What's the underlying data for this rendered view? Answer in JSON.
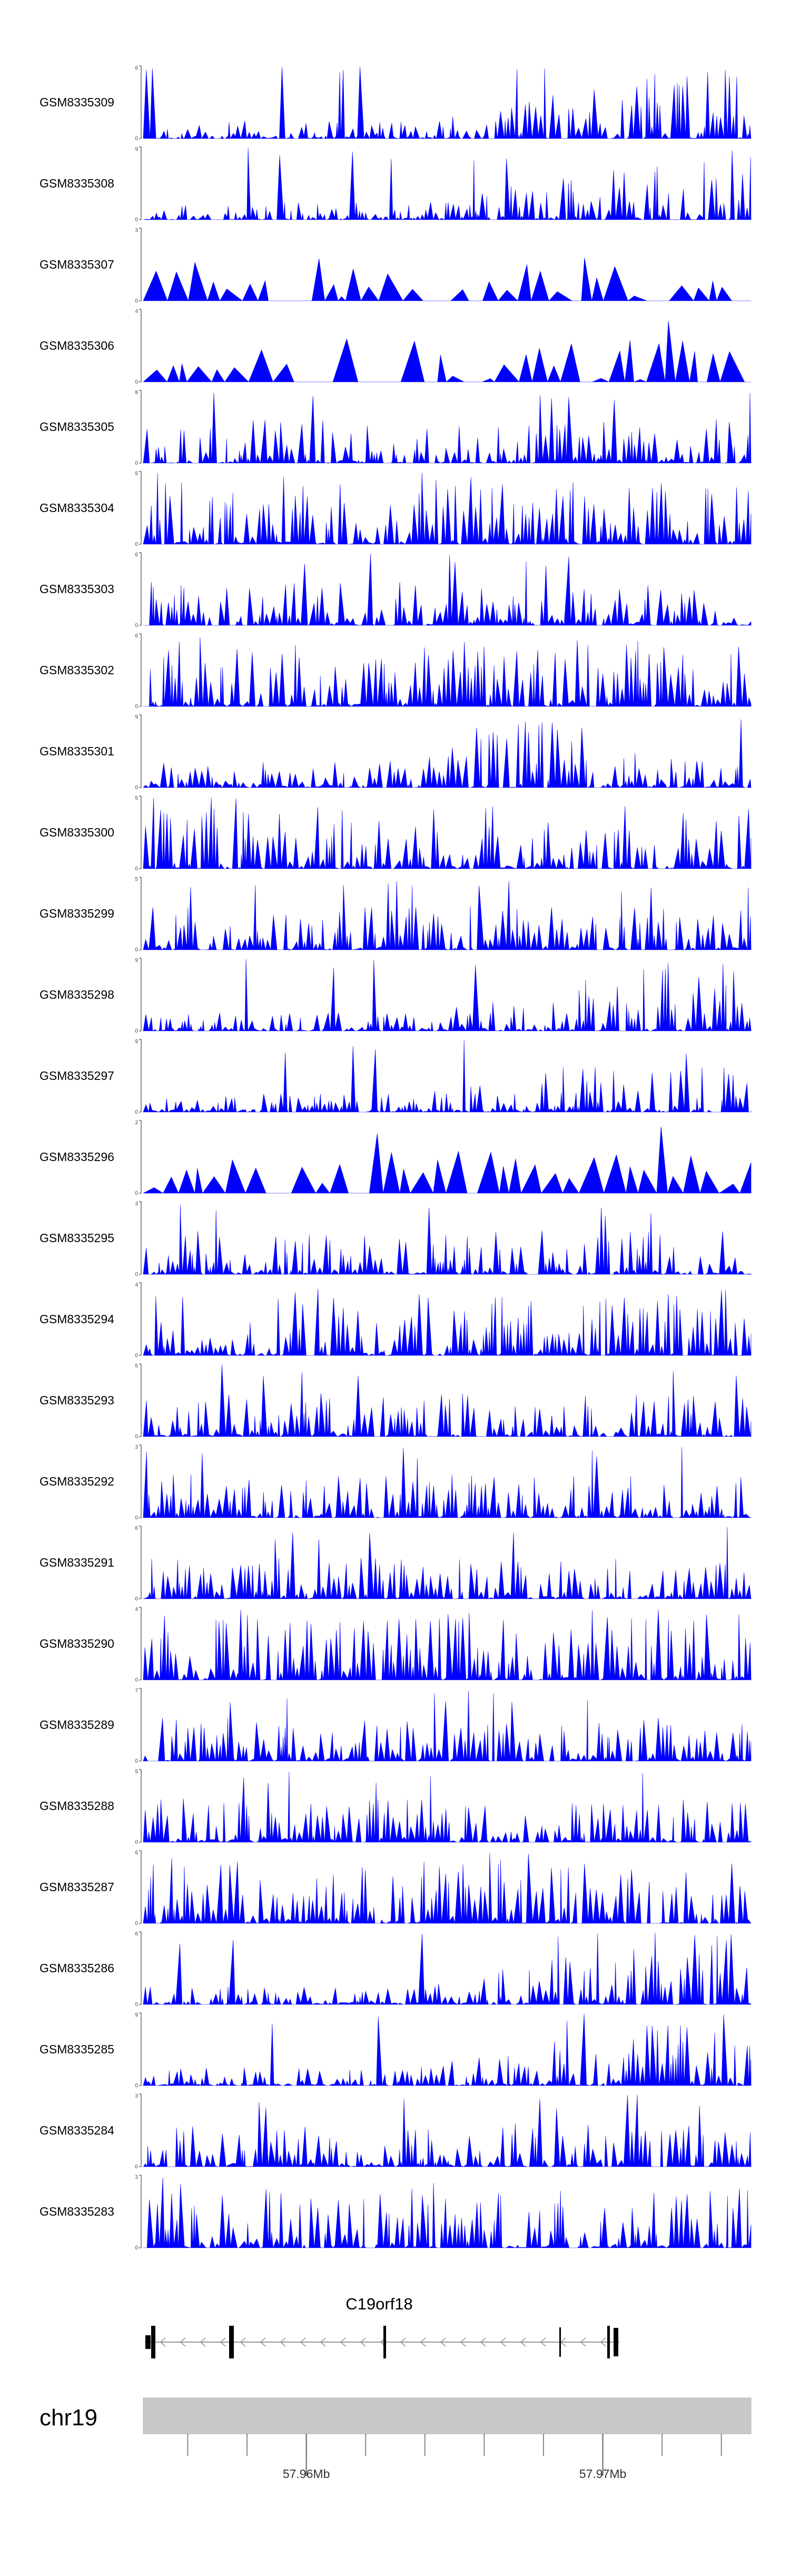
{
  "chart_data": {
    "type": "area",
    "track_color": "#0000FF",
    "tracks": [
      {
        "name": "GSM8335309",
        "ymax": "6",
        "ymin": "0",
        "seed": 309,
        "profile": "late-high"
      },
      {
        "name": "GSM8335308",
        "ymax": "9",
        "ymin": "0",
        "seed": 308,
        "profile": "late-high"
      },
      {
        "name": "GSM8335307",
        "ymax": "3",
        "ymin": "0",
        "seed": 307,
        "profile": "sparse"
      },
      {
        "name": "GSM8335306",
        "ymax": "4",
        "ymin": "0",
        "seed": 306,
        "profile": "sparse"
      },
      {
        "name": "GSM8335305",
        "ymax": "8",
        "ymin": "0",
        "seed": 305,
        "profile": "uniform"
      },
      {
        "name": "GSM8335304",
        "ymax": "5",
        "ymin": "0",
        "seed": 304,
        "profile": "dense"
      },
      {
        "name": "GSM8335303",
        "ymax": "6",
        "ymin": "0",
        "seed": 303,
        "profile": "uniform"
      },
      {
        "name": "GSM8335302",
        "ymax": "6",
        "ymin": "0",
        "seed": 302,
        "profile": "dense"
      },
      {
        "name": "GSM8335301",
        "ymax": "9",
        "ymin": "0",
        "seed": 301,
        "profile": "mid-high"
      },
      {
        "name": "GSM8335300",
        "ymax": "5",
        "ymin": "0",
        "seed": 300,
        "profile": "dense"
      },
      {
        "name": "GSM8335299",
        "ymax": "5",
        "ymin": "0",
        "seed": 299,
        "profile": "uniform"
      },
      {
        "name": "GSM8335298",
        "ymax": "9",
        "ymin": "0",
        "seed": 298,
        "profile": "late-high"
      },
      {
        "name": "GSM8335297",
        "ymax": "9",
        "ymin": "0",
        "seed": 297,
        "profile": "late-high"
      },
      {
        "name": "GSM8335296",
        "ymax": "2",
        "ymin": "0",
        "seed": 296,
        "profile": "sparse"
      },
      {
        "name": "GSM8335295",
        "ymax": "3",
        "ymin": "0",
        "seed": 295,
        "profile": "uniform"
      },
      {
        "name": "GSM8335294",
        "ymax": "4",
        "ymin": "0",
        "seed": 294,
        "profile": "dense"
      },
      {
        "name": "GSM8335293",
        "ymax": "5",
        "ymin": "0",
        "seed": 293,
        "profile": "uniform"
      },
      {
        "name": "GSM8335292",
        "ymax": "3",
        "ymin": "0",
        "seed": 292,
        "profile": "uniform"
      },
      {
        "name": "GSM8335291",
        "ymax": "6",
        "ymin": "0",
        "seed": 291,
        "profile": "uniform"
      },
      {
        "name": "GSM8335290",
        "ymax": "4",
        "ymin": "0",
        "seed": 290,
        "profile": "dense"
      },
      {
        "name": "GSM8335289",
        "ymax": "7",
        "ymin": "0",
        "seed": 289,
        "profile": "uniform"
      },
      {
        "name": "GSM8335288",
        "ymax": "5",
        "ymin": "0",
        "seed": 288,
        "profile": "uniform"
      },
      {
        "name": "GSM8335287",
        "ymax": "6",
        "ymin": "0",
        "seed": 287,
        "profile": "dense"
      },
      {
        "name": "GSM8335286",
        "ymax": "6",
        "ymin": "0",
        "seed": 286,
        "profile": "late-high"
      },
      {
        "name": "GSM8335285",
        "ymax": "9",
        "ymin": "0",
        "seed": 285,
        "profile": "late-high"
      },
      {
        "name": "GSM8335284",
        "ymax": "3",
        "ymin": "0",
        "seed": 284,
        "profile": "uniform"
      },
      {
        "name": "GSM8335283",
        "ymax": "3",
        "ymin": "0",
        "seed": 283,
        "profile": "dense"
      }
    ],
    "gene": {
      "name": "C19orf18",
      "strand": "-"
    },
    "chromosome": {
      "name": "chr19",
      "range_mb": [
        57.9545,
        57.975
      ],
      "ticks": [
        {
          "value": 57.96,
          "label": "57.96Mb"
        },
        {
          "value": 57.97,
          "label": "57.97Mb"
        }
      ],
      "minor_tick_step_mb": 0.002
    }
  }
}
